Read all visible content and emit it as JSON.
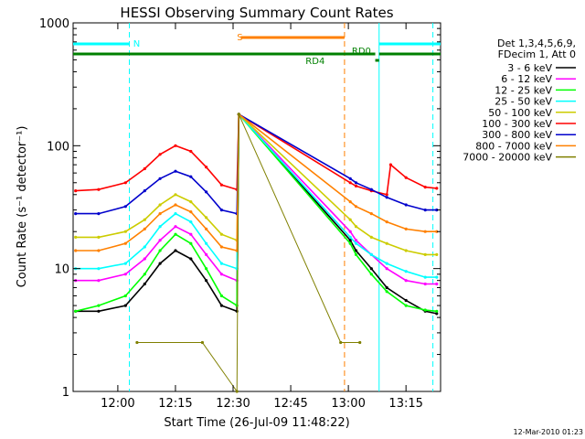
{
  "chart_data": {
    "type": "line",
    "title": "HESSI Observing Summary Count Rates",
    "xlabel": "Start Time (26-Jul-09 11:48:22)",
    "ylabel": "Count Rate (s⁻¹ detector⁻¹)",
    "yscale": "log",
    "ylim": [
      1,
      1000
    ],
    "xlim": [
      "11:48:22",
      "13:24:00"
    ],
    "x_ticks": [
      "12:00",
      "12:15",
      "12:30",
      "12:45",
      "13:00",
      "13:15"
    ],
    "y_ticks": [
      "1",
      "10",
      "100",
      "1000"
    ],
    "grid": false,
    "legend_position": "right",
    "legend_header": [
      "Det 1,3,4,5,6,9,",
      "FDecim 1, Att 0"
    ],
    "footer_date": "12-Mar-2010 01:23",
    "series": [
      {
        "name": "3 - 6 keV",
        "color": "#000000",
        "x": [
          "11:49",
          "11:55",
          "12:02",
          "12:07",
          "12:11",
          "12:15",
          "12:19",
          "12:23",
          "12:27",
          "12:31",
          "12:31:30",
          "13:00:30",
          "13:02",
          "13:06",
          "13:10",
          "13:15",
          "13:20",
          "13:23"
        ],
        "y": [
          4.5,
          4.5,
          5,
          7.5,
          11,
          14,
          12,
          8,
          5,
          4.5,
          180,
          17,
          14,
          10,
          7,
          5.5,
          4.5,
          4.3
        ]
      },
      {
        "name": "6 - 12 keV",
        "color": "#ff00ff",
        "x": [
          "11:49",
          "11:55",
          "12:02",
          "12:07",
          "12:11",
          "12:15",
          "12:19",
          "12:23",
          "12:27",
          "12:31",
          "12:31:30",
          "13:00:30",
          "13:02",
          "13:06",
          "13:10",
          "13:15",
          "13:20",
          "13:23"
        ],
        "y": [
          8,
          8,
          9,
          12,
          17,
          22,
          19,
          13,
          9,
          8,
          180,
          20,
          17,
          13,
          10,
          8,
          7.5,
          7.5
        ]
      },
      {
        "name": "12 - 25 keV",
        "color": "#00ff00",
        "x": [
          "11:49",
          "11:55",
          "12:02",
          "12:07",
          "12:11",
          "12:15",
          "12:19",
          "12:23",
          "12:27",
          "12:31",
          "12:31:30",
          "13:00:30",
          "13:02",
          "13:06",
          "13:10",
          "13:15",
          "13:20",
          "13:23"
        ],
        "y": [
          4.5,
          5,
          6,
          9,
          14,
          19,
          16,
          10,
          6,
          5,
          180,
          16,
          13,
          9,
          6.5,
          5,
          4.6,
          4.5
        ]
      },
      {
        "name": "25 - 50 keV",
        "color": "#00ffff",
        "x": [
          "11:49",
          "11:55",
          "12:02",
          "12:07",
          "12:11",
          "12:15",
          "12:19",
          "12:23",
          "12:27",
          "12:31",
          "12:31:30",
          "13:00:30",
          "13:02",
          "13:06",
          "13:10",
          "13:15",
          "13:20",
          "13:23"
        ],
        "y": [
          10,
          10,
          11,
          15,
          22,
          28,
          24,
          16,
          11,
          10,
          180,
          18,
          16,
          13,
          11,
          9.5,
          8.5,
          8.5
        ]
      },
      {
        "name": "50 - 100 keV",
        "color": "#cccc00",
        "x": [
          "11:49",
          "11:55",
          "12:02",
          "12:07",
          "12:11",
          "12:15",
          "12:19",
          "12:23",
          "12:27",
          "12:31",
          "12:31:30",
          "13:00:30",
          "13:02",
          "13:06",
          "13:10",
          "13:15",
          "13:20",
          "13:23"
        ],
        "y": [
          18,
          18,
          20,
          25,
          33,
          40,
          35,
          26,
          19,
          17,
          180,
          25,
          22,
          18,
          16,
          14,
          13,
          13
        ]
      },
      {
        "name": "100 - 300 keV",
        "color": "#ff0000",
        "x": [
          "11:49",
          "11:55",
          "12:02",
          "12:07",
          "12:11",
          "12:15",
          "12:19",
          "12:23",
          "12:27",
          "12:31",
          "12:31:30",
          "13:00:30",
          "13:02",
          "13:06",
          "13:10",
          "13:11",
          "13:15",
          "13:20",
          "13:23"
        ],
        "y": [
          43,
          44,
          50,
          65,
          85,
          100,
          90,
          67,
          48,
          44,
          180,
          50,
          47,
          43,
          40,
          70,
          55,
          46,
          45
        ]
      },
      {
        "name": "300 - 800 keV",
        "color": "#0000cc",
        "x": [
          "11:49",
          "11:55",
          "12:02",
          "12:07",
          "12:11",
          "12:15",
          "12:19",
          "12:23",
          "12:27",
          "12:31",
          "12:31:30",
          "13:00:30",
          "13:02",
          "13:06",
          "13:10",
          "13:15",
          "13:20",
          "13:23"
        ],
        "y": [
          28,
          28,
          32,
          43,
          54,
          62,
          56,
          42,
          30,
          28,
          180,
          54,
          50,
          44,
          38,
          33,
          30,
          30
        ]
      },
      {
        "name": "800 - 7000 keV",
        "color": "#ff8000",
        "x": [
          "11:49",
          "11:55",
          "12:02",
          "12:07",
          "12:11",
          "12:15",
          "12:19",
          "12:23",
          "12:27",
          "12:31",
          "12:31:30",
          "13:00:30",
          "13:02",
          "13:06",
          "13:10",
          "13:15",
          "13:20",
          "13:23"
        ],
        "y": [
          14,
          14,
          16,
          21,
          28,
          33,
          29,
          21,
          15,
          14,
          180,
          35,
          32,
          28,
          24,
          21,
          20,
          20
        ]
      },
      {
        "name": "7000 - 20000 keV",
        "color": "#808000",
        "x": [
          "12:05",
          "12:22",
          "12:31",
          "12:31:30",
          "12:58",
          "13:03"
        ],
        "y": [
          2.5,
          2.5,
          1,
          180,
          2.5,
          2.5
        ]
      }
    ],
    "annotations": [
      {
        "label": "N",
        "color": "#00ffff"
      },
      {
        "label": "S",
        "color": "#ff8000"
      },
      {
        "label": "RD0",
        "color": "#008000"
      },
      {
        "label": "RD4",
        "color": "#008000"
      }
    ]
  }
}
